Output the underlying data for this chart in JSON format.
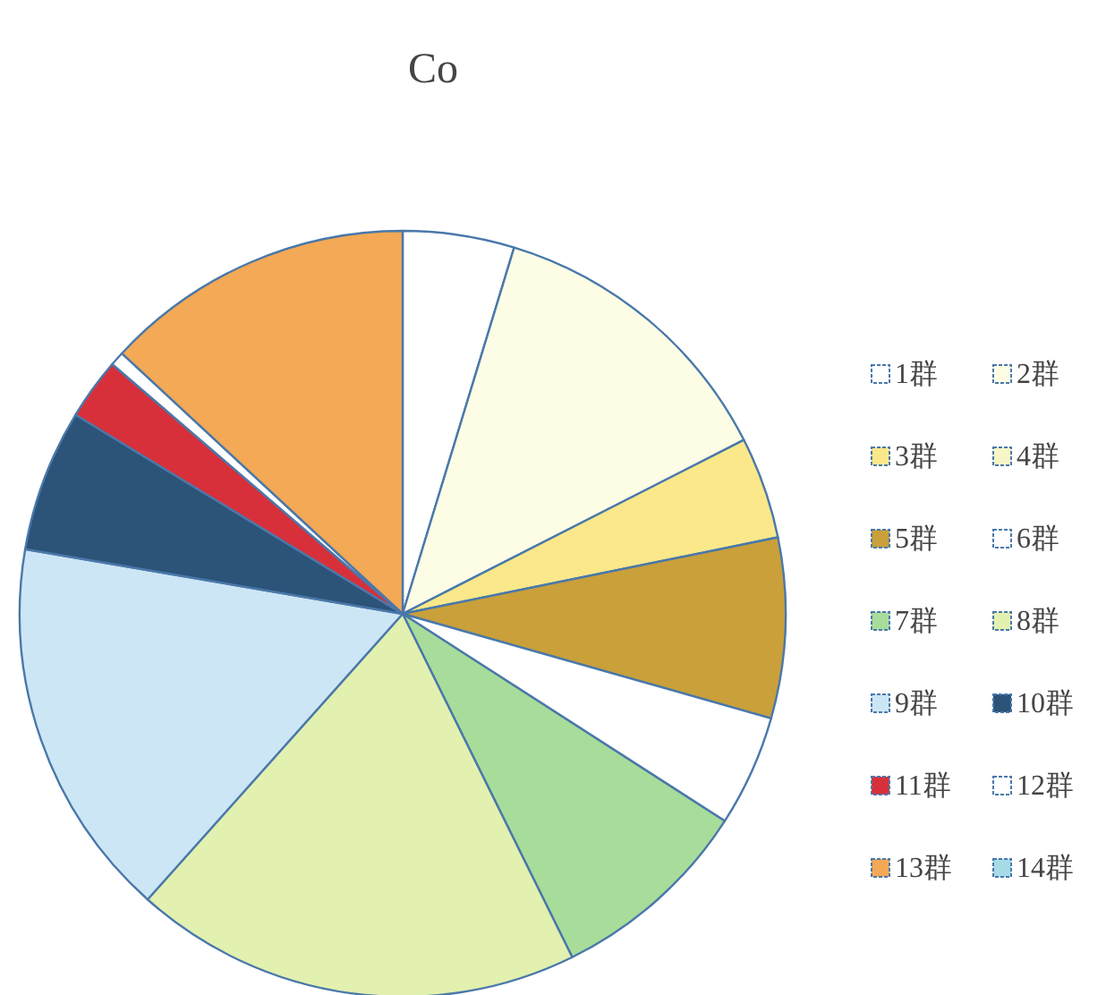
{
  "chart_data": {
    "type": "pie",
    "title": "Co",
    "categories": [
      "1群",
      "2群",
      "3群",
      "4群",
      "5群",
      "6群",
      "7群",
      "8群",
      "9群",
      "10群",
      "11群",
      "12群",
      "13群",
      "14群"
    ],
    "values": [
      4.7,
      12.8,
      4.3,
      0,
      7.6,
      4.7,
      8.6,
      18.9,
      16.1,
      6.0,
      2.6,
      0.6,
      13.1,
      0
    ],
    "colors": [
      "#ffffff",
      "#fdfde6",
      "#fbe88a",
      "#f8f6c8",
      "#c9a03a",
      "#ffffff",
      "#a8dc9a",
      "#e2f0b0",
      "#cde6f5",
      "#2c5378",
      "#d8303a",
      "#ffffff",
      "#f3a955",
      "#a6dbe6"
    ],
    "legend": "right"
  }
}
